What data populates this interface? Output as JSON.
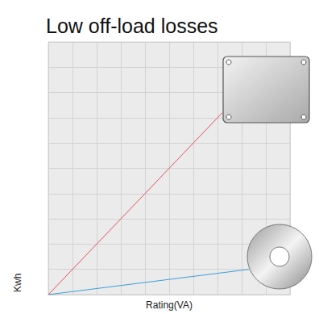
{
  "chart_data": {
    "type": "line",
    "title": "Low off-load losses",
    "x_label": "Rating(VA)",
    "y_label": "Kwh",
    "series": [
      {
        "color": "#e0505a",
        "x": [
          0,
          7.2
        ],
        "values": [
          0,
          7.2
        ]
      },
      {
        "color": "#3a9fd8",
        "x": [
          0,
          8.3
        ],
        "values": [
          0,
          1.0
        ]
      }
    ],
    "xlim": [
      0,
      10
    ],
    "xticks": [
      0,
      1,
      2,
      3,
      4,
      5,
      6,
      7,
      8,
      9,
      10
    ],
    "ylim": [
      0,
      10
    ],
    "yticks": [
      0,
      1,
      2,
      3,
      4,
      5,
      6,
      7,
      8,
      9,
      10
    ],
    "grid": true,
    "tick_labels": false
  }
}
